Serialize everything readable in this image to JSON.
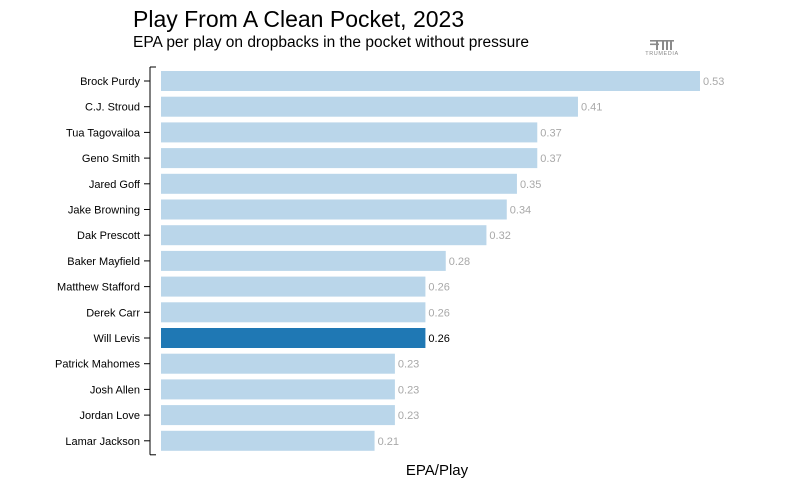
{
  "chart_data": {
    "type": "bar",
    "orientation": "horizontal",
    "title": "Play From A Clean Pocket, 2023",
    "subtitle": "EPA per play on dropbacks in the pocket without pressure",
    "xlabel": "EPA/Play",
    "ylabel": "",
    "xlim": [
      0,
      0.53
    ],
    "grid": false,
    "categories": [
      "Brock Purdy",
      "C.J. Stroud",
      "Tua Tagovailoa",
      "Geno Smith",
      "Jared Goff",
      "Jake Browning",
      "Dak Prescott",
      "Baker Mayfield",
      "Matthew Stafford",
      "Derek Carr",
      "Will Levis",
      "Patrick Mahomes",
      "Josh Allen",
      "Jordan Love",
      "Lamar Jackson"
    ],
    "values": [
      0.53,
      0.41,
      0.37,
      0.37,
      0.35,
      0.34,
      0.32,
      0.28,
      0.26,
      0.26,
      0.26,
      0.23,
      0.23,
      0.23,
      0.21
    ],
    "value_labels": [
      "0.53",
      "0.41",
      "0.37",
      "0.37",
      "0.35",
      "0.34",
      "0.32",
      "0.28",
      "0.26",
      "0.26",
      "0.26",
      "0.23",
      "0.23",
      "0.23",
      "0.21"
    ],
    "highlight": "Will Levis",
    "colors": {
      "bar": "#bad6ea",
      "highlight": "#1f78b4"
    }
  },
  "brand": {
    "logo_text": "TRUMEDIA"
  }
}
